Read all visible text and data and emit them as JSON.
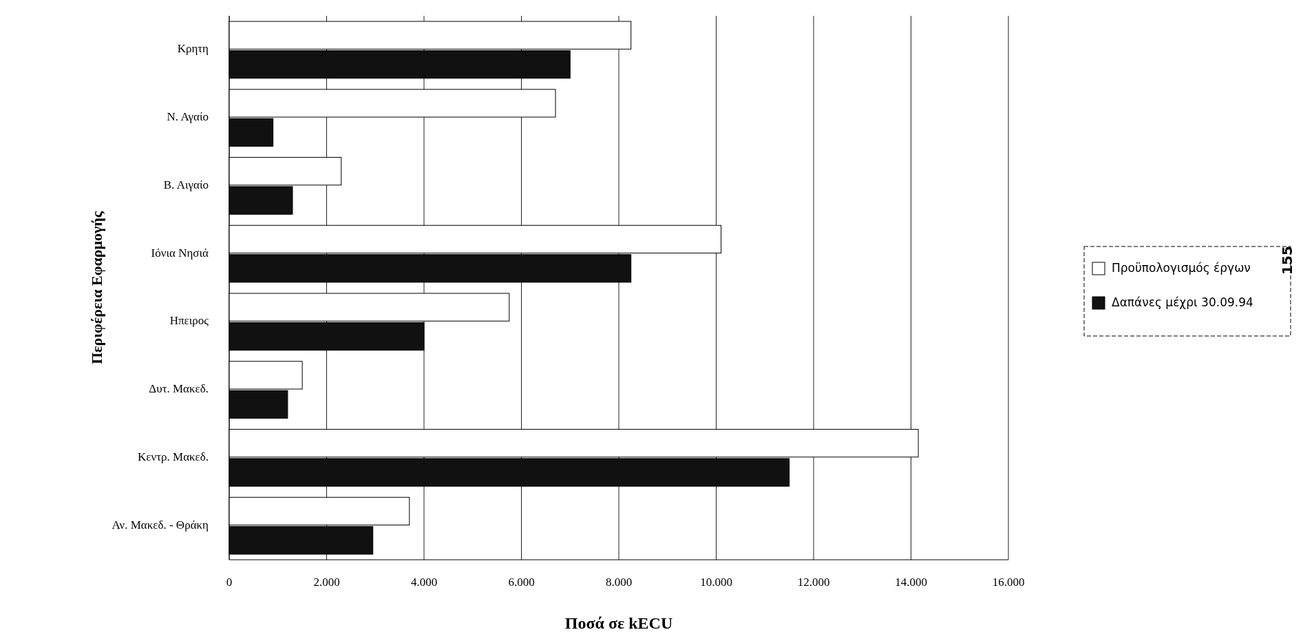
{
  "chart_data": {
    "type": "bar",
    "orientation": "horizontal",
    "xlabel": "Ποσά σε kECU",
    "ylabel": "Περιφέρεια Εφαρμογής",
    "categories": [
      "Κρητη",
      "Ν. Αγαίο",
      "Β. Αιγαίο",
      "Ιόνια Νησιά",
      "Ηπειρος",
      "Δυτ. Μακεδ.",
      "Κεντρ. Μακεδ.",
      "Αν. Μακεδ. - Θράκη"
    ],
    "series": [
      {
        "name": "Προϋπολογισμός έργων",
        "color": "#ffffff",
        "values": [
          8250,
          6700,
          2300,
          10100,
          5750,
          1500,
          14150,
          3700
        ]
      },
      {
        "name": "Δαπάνες μέχρι 30.09.94",
        "color": "#111111",
        "values": [
          7000,
          900,
          1300,
          8250,
          4000,
          1200,
          11500,
          2950
        ]
      }
    ],
    "xlim": [
      0,
      16000
    ],
    "xticks": [
      0,
      {
        "value": 2000,
        "label": "2.000"
      },
      {
        "value": 4000,
        "label": "4.000"
      },
      {
        "value": 6000,
        "label": "6.000"
      },
      {
        "value": 8000,
        "label": "8.000"
      },
      {
        "value": 10000,
        "label": "10.000"
      },
      {
        "value": 12000,
        "label": "12.000"
      },
      {
        "value": 14000,
        "label": "14.000"
      },
      {
        "value": 16000,
        "label": "16.000"
      }
    ],
    "grid": "x",
    "legend": "right",
    "annotations": [
      "155"
    ]
  }
}
